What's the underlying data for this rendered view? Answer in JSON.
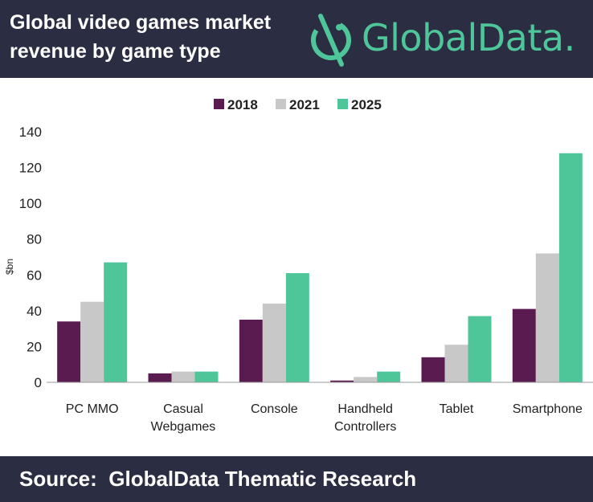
{
  "header": {
    "title_line1": "Global video games market",
    "title_line2": "revenue by game type",
    "logo_text": "GlobalData."
  },
  "footer": {
    "source": "Source:  GlobalData Thematic Research"
  },
  "colors": {
    "header_bg": "#2b2d42",
    "brand_green": "#4fc59a"
  },
  "chart_data": {
    "type": "bar",
    "categories": [
      [
        "PC MMO"
      ],
      [
        "Casual",
        "Webgames"
      ],
      [
        "Console"
      ],
      [
        "Handheld",
        "Controllers"
      ],
      [
        "Tablet"
      ],
      [
        "Smartphone"
      ]
    ],
    "series": [
      {
        "name": "2018",
        "color": "#5a1c50",
        "values": [
          34,
          5,
          35,
          1,
          14,
          41
        ]
      },
      {
        "name": "2021",
        "color": "#c8c8c8",
        "values": [
          45,
          6,
          44,
          3,
          21,
          72
        ]
      },
      {
        "name": "2025",
        "color": "#4fc59a",
        "values": [
          67,
          6,
          61,
          6,
          37,
          128
        ]
      }
    ],
    "ylabel": "$bn",
    "ylim": [
      0,
      140
    ],
    "yticks": [
      0,
      20,
      40,
      60,
      80,
      100,
      120,
      140
    ],
    "legend_position": "top-center",
    "grid": false
  }
}
